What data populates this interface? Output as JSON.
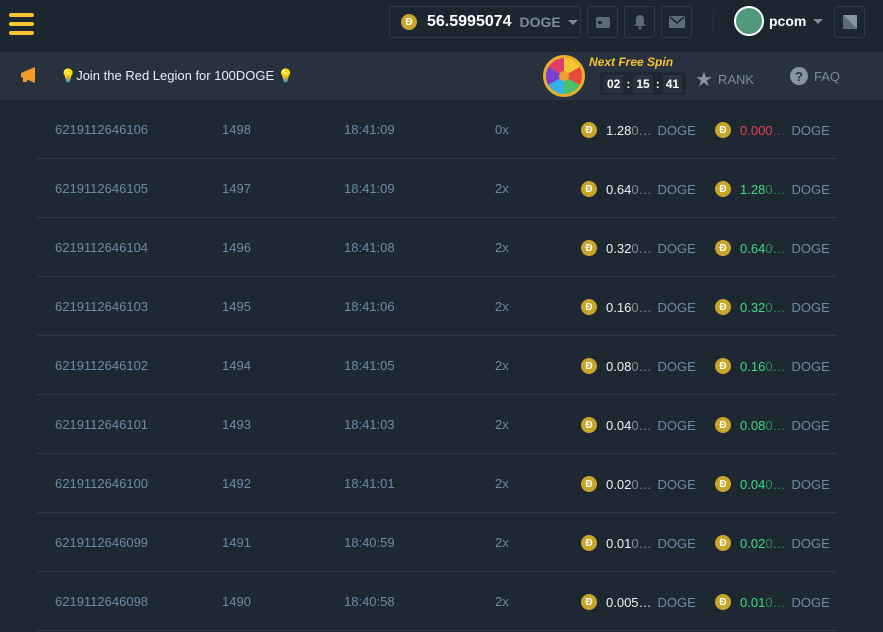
{
  "header": {
    "balance": "56.5995074",
    "currency": "DOGE",
    "username": "pcom"
  },
  "banner": {
    "message": "Join the Red Legion for 100DOGE",
    "spin_label": "Next Free Spin",
    "timer": [
      "02",
      "15",
      "41"
    ],
    "rank": "RANK",
    "faq": "FAQ"
  },
  "colors": {
    "accent": "#f6c431",
    "win": "#3ddc84",
    "loss": "#e5435a"
  },
  "bets": [
    {
      "id": "6219112646106",
      "nonce": "1498",
      "time": "18:41:09",
      "mult": "0x",
      "bet": [
        "1.28",
        "0…"
      ],
      "payout": [
        "0.000",
        "…"
      ],
      "result": "loss",
      "cur": "DOGE"
    },
    {
      "id": "6219112646105",
      "nonce": "1497",
      "time": "18:41:09",
      "mult": "2x",
      "bet": [
        "0.64",
        "0…"
      ],
      "payout": [
        "1.28",
        "0…"
      ],
      "result": "win",
      "cur": "DOGE"
    },
    {
      "id": "6219112646104",
      "nonce": "1496",
      "time": "18:41:08",
      "mult": "2x",
      "bet": [
        "0.32",
        "0…"
      ],
      "payout": [
        "0.64",
        "0…"
      ],
      "result": "win",
      "cur": "DOGE"
    },
    {
      "id": "6219112646103",
      "nonce": "1495",
      "time": "18:41:06",
      "mult": "2x",
      "bet": [
        "0.16",
        "0…"
      ],
      "payout": [
        "0.32",
        "0…"
      ],
      "result": "win",
      "cur": "DOGE"
    },
    {
      "id": "6219112646102",
      "nonce": "1494",
      "time": "18:41:05",
      "mult": "2x",
      "bet": [
        "0.08",
        "0…"
      ],
      "payout": [
        "0.16",
        "0…"
      ],
      "result": "win",
      "cur": "DOGE"
    },
    {
      "id": "6219112646101",
      "nonce": "1493",
      "time": "18:41:03",
      "mult": "2x",
      "bet": [
        "0.04",
        "0…"
      ],
      "payout": [
        "0.08",
        "0…"
      ],
      "result": "win",
      "cur": "DOGE"
    },
    {
      "id": "6219112646100",
      "nonce": "1492",
      "time": "18:41:01",
      "mult": "2x",
      "bet": [
        "0.02",
        "0…"
      ],
      "payout": [
        "0.04",
        "0…"
      ],
      "result": "win",
      "cur": "DOGE"
    },
    {
      "id": "6219112646099",
      "nonce": "1491",
      "time": "18:40:59",
      "mult": "2x",
      "bet": [
        "0.01",
        "0…"
      ],
      "payout": [
        "0.02",
        "0…"
      ],
      "result": "win",
      "cur": "DOGE"
    },
    {
      "id": "6219112646098",
      "nonce": "1490",
      "time": "18:40:58",
      "mult": "2x",
      "bet": [
        "0.005…",
        ""
      ],
      "payout": [
        "0.01",
        "0…"
      ],
      "result": "win",
      "cur": "DOGE"
    }
  ]
}
